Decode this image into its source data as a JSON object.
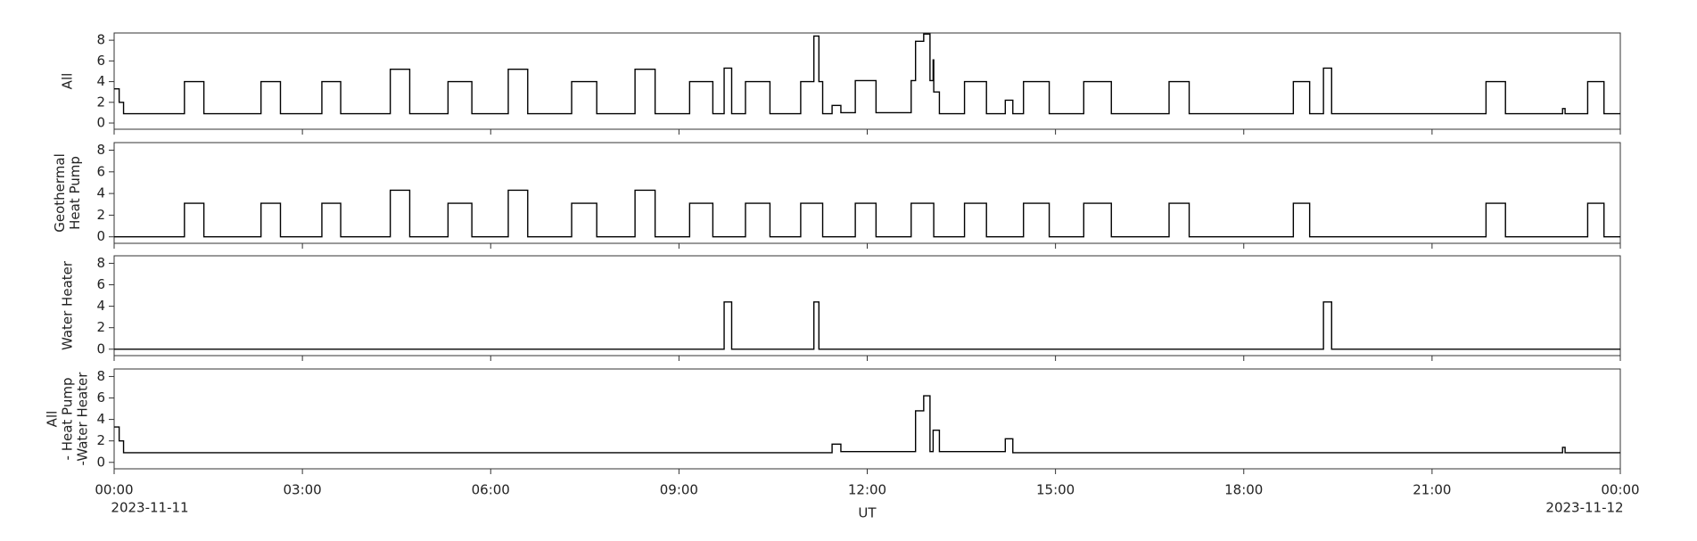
{
  "chart_data": [
    {
      "type": "line",
      "step": true,
      "color": "#000000",
      "ylabel": [
        "All"
      ],
      "xlim": [
        0,
        24
      ],
      "xticks": [
        0,
        3,
        6,
        9,
        12,
        15,
        18,
        21,
        24
      ],
      "ylim": [
        -0.6,
        8.7
      ],
      "yticks": [
        0,
        2,
        4,
        6,
        8
      ],
      "x": [
        0,
        0.08,
        0.15,
        1.12,
        1.43,
        2.34,
        2.65,
        3.31,
        3.61,
        4.4,
        4.71,
        5.32,
        5.7,
        6.28,
        6.59,
        7.29,
        7.69,
        8.3,
        8.62,
        9.17,
        9.54,
        9.72,
        9.84,
        10.06,
        10.45,
        10.94,
        11.15,
        11.23,
        11.29,
        11.44,
        11.58,
        11.81,
        12.14,
        12.7,
        12.77,
        12.9,
        13.0,
        13.05,
        13.06,
        13.15,
        13.55,
        13.9,
        14.2,
        14.32,
        14.49,
        14.9,
        15.45,
        15.89,
        16.81,
        17.13,
        18.79,
        19.05,
        19.27,
        19.4,
        21.86,
        22.17,
        23.08,
        23.12,
        23.48,
        23.74,
        24
      ],
      "values": [
        3.3,
        2.0,
        0.9,
        4.0,
        0.9,
        4.0,
        0.9,
        4.0,
        0.9,
        5.2,
        0.9,
        4.0,
        0.9,
        5.2,
        0.9,
        4.0,
        0.9,
        5.2,
        0.9,
        4.0,
        0.9,
        5.3,
        0.9,
        4.0,
        0.9,
        4.0,
        8.4,
        4.0,
        0.9,
        1.7,
        1.0,
        4.1,
        1.0,
        4.1,
        7.9,
        8.6,
        4.1,
        6.1,
        3.0,
        0.9,
        4.0,
        0.9,
        2.2,
        0.9,
        4.0,
        0.9,
        4.0,
        0.9,
        4.0,
        0.9,
        4.0,
        0.9,
        5.3,
        0.9,
        4.0,
        0.9,
        1.4,
        0.9,
        4.0,
        0.9,
        0.9
      ]
    },
    {
      "type": "line",
      "step": true,
      "color": "#000000",
      "ylabel": [
        "Geothermal",
        "Heat Pump"
      ],
      "xlim": [
        0,
        24
      ],
      "xticks": [
        0,
        3,
        6,
        9,
        12,
        15,
        18,
        21,
        24
      ],
      "ylim": [
        -0.6,
        8.7
      ],
      "yticks": [
        0,
        2,
        4,
        6,
        8
      ],
      "x": [
        0,
        1.12,
        1.43,
        2.34,
        2.65,
        3.31,
        3.61,
        4.4,
        4.71,
        5.32,
        5.7,
        6.28,
        6.59,
        7.29,
        7.69,
        8.3,
        8.62,
        9.17,
        9.54,
        10.06,
        10.45,
        10.94,
        11.29,
        11.81,
        12.14,
        12.7,
        13.06,
        13.55,
        13.9,
        14.49,
        14.9,
        15.45,
        15.89,
        16.81,
        17.13,
        18.79,
        19.05,
        21.86,
        22.17,
        23.48,
        23.74,
        24
      ],
      "values": [
        0,
        3.1,
        0,
        3.1,
        0,
        3.1,
        0,
        4.3,
        0,
        3.1,
        0,
        4.3,
        0,
        3.1,
        0,
        4.3,
        0,
        3.1,
        0,
        3.1,
        0,
        3.1,
        0,
        3.1,
        0,
        3.1,
        0,
        3.1,
        0,
        3.1,
        0,
        3.1,
        0,
        3.1,
        0,
        3.1,
        0,
        3.1,
        0,
        3.1,
        0,
        0
      ]
    },
    {
      "type": "line",
      "step": true,
      "color": "#000000",
      "ylabel": [
        "Water Heater"
      ],
      "xlim": [
        0,
        24
      ],
      "xticks": [
        0,
        3,
        6,
        9,
        12,
        15,
        18,
        21,
        24
      ],
      "ylim": [
        -0.6,
        8.7
      ],
      "yticks": [
        0,
        2,
        4,
        6,
        8
      ],
      "x": [
        0,
        9.72,
        9.84,
        11.15,
        11.23,
        19.27,
        19.4,
        24
      ],
      "values": [
        0,
        4.4,
        0,
        4.4,
        0,
        4.4,
        0,
        0
      ]
    },
    {
      "type": "line",
      "step": true,
      "color": "#000000",
      "ylabel": [
        "All",
        "- Heat Pump",
        "-Water Heater"
      ],
      "xlim": [
        0,
        24
      ],
      "xticks": [
        {
          "value": 0,
          "label": "00:00"
        },
        {
          "value": 3,
          "label": "03:00"
        },
        {
          "value": 6,
          "label": "06:00"
        },
        {
          "value": 9,
          "label": "09:00"
        },
        {
          "value": 12,
          "label": "12:00"
        },
        {
          "value": 15,
          "label": "15:00"
        },
        {
          "value": 18,
          "label": "18:00"
        },
        {
          "value": 21,
          "label": "21:00"
        },
        {
          "value": 24,
          "label": "00:00"
        }
      ],
      "xdates": [
        {
          "value": 0,
          "label": "2023-11-11"
        },
        {
          "value": 24,
          "label": "2023-11-12"
        }
      ],
      "xlabel": "UT",
      "ylim": [
        -0.6,
        8.7
      ],
      "yticks": [
        0,
        2,
        4,
        6,
        8
      ],
      "x": [
        0,
        0.08,
        0.15,
        11.44,
        11.58,
        12.77,
        12.9,
        13.0,
        13.05,
        13.15,
        14.2,
        14.32,
        23.08,
        23.12,
        24
      ],
      "values": [
        3.3,
        2.0,
        0.9,
        1.7,
        1.0,
        4.8,
        6.2,
        1.0,
        3.0,
        1.0,
        2.2,
        0.9,
        1.4,
        0.9,
        0.9
      ]
    }
  ]
}
